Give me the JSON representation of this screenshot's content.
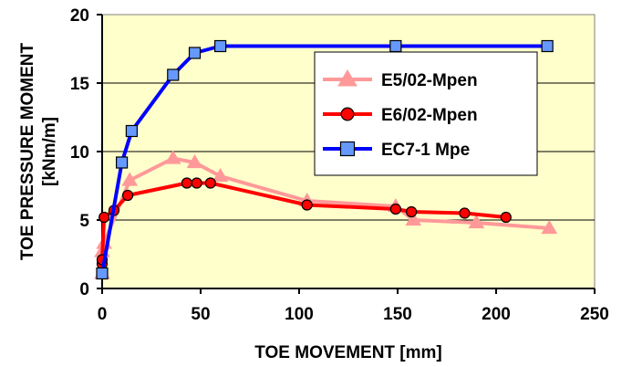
{
  "chart_data": {
    "type": "line",
    "title": "",
    "xlabel": "TOE MOVEMENT [mm]",
    "ylabel_line1": "TOE PRESSURE MOMENT",
    "ylabel_line2": "[kNm/m]",
    "xlim": [
      0,
      250
    ],
    "ylim": [
      0,
      20
    ],
    "x_ticks": [
      0,
      50,
      100,
      150,
      200,
      250
    ],
    "y_ticks": [
      0,
      5,
      10,
      15,
      20
    ],
    "grid": "horizontal",
    "plot_background": "#FFFFCC",
    "legend_position": "top-right",
    "series": [
      {
        "name": "E5/02-Mpen",
        "color": "#FF9999",
        "marker": "triangle",
        "points": [
          [
            0,
            1.1
          ],
          [
            0,
            2.7
          ],
          [
            1,
            3.3
          ],
          [
            14,
            7.9
          ],
          [
            36,
            9.5
          ],
          [
            47,
            9.2
          ],
          [
            60,
            8.2
          ],
          [
            104,
            6.4
          ],
          [
            149,
            6.0
          ],
          [
            158,
            5.0
          ],
          [
            190,
            4.8
          ],
          [
            227,
            4.4
          ]
        ]
      },
      {
        "name": "E6/02-Mpen",
        "color": "#FF0000",
        "marker": "circle",
        "points": [
          [
            0,
            1.8
          ],
          [
            0,
            2.1
          ],
          [
            1,
            5.2
          ],
          [
            6,
            5.7
          ],
          [
            13,
            6.8
          ],
          [
            43,
            7.7
          ],
          [
            48,
            7.7
          ],
          [
            55,
            7.7
          ],
          [
            104,
            6.1
          ],
          [
            149,
            5.8
          ],
          [
            157,
            5.6
          ],
          [
            184,
            5.5
          ],
          [
            205,
            5.2
          ]
        ]
      },
      {
        "name": "EC7-1 Mpe",
        "color": "#0000FF",
        "marker": "square",
        "points": [
          [
            0,
            1.1
          ],
          [
            10,
            9.2
          ],
          [
            15,
            11.5
          ],
          [
            36,
            15.6
          ],
          [
            47,
            17.2
          ],
          [
            60,
            17.7
          ],
          [
            149,
            17.7
          ],
          [
            226,
            17.7
          ]
        ]
      }
    ]
  }
}
